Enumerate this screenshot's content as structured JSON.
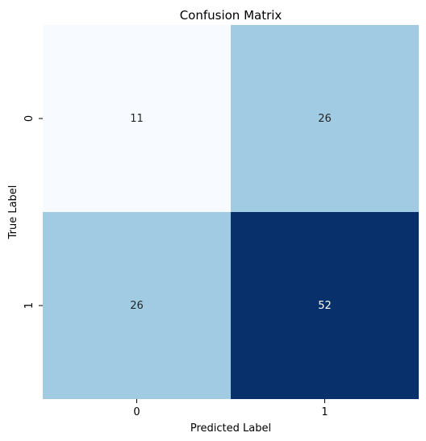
{
  "chart_data": {
    "type": "heatmap",
    "title": "Confusion Matrix",
    "xlabel": "Predicted Label",
    "ylabel": "True Label",
    "x_categories": [
      "0",
      "1"
    ],
    "y_categories": [
      "0",
      "1"
    ],
    "values": [
      [
        11,
        26
      ],
      [
        26,
        52
      ]
    ],
    "colormap": "Blues",
    "colors": {
      "low": "#f7fbff",
      "mid": "#a0cbe2",
      "high": "#08306b",
      "text_dark": "#262626",
      "text_light": "#ffffff"
    },
    "colorbar": false,
    "grid": false
  }
}
